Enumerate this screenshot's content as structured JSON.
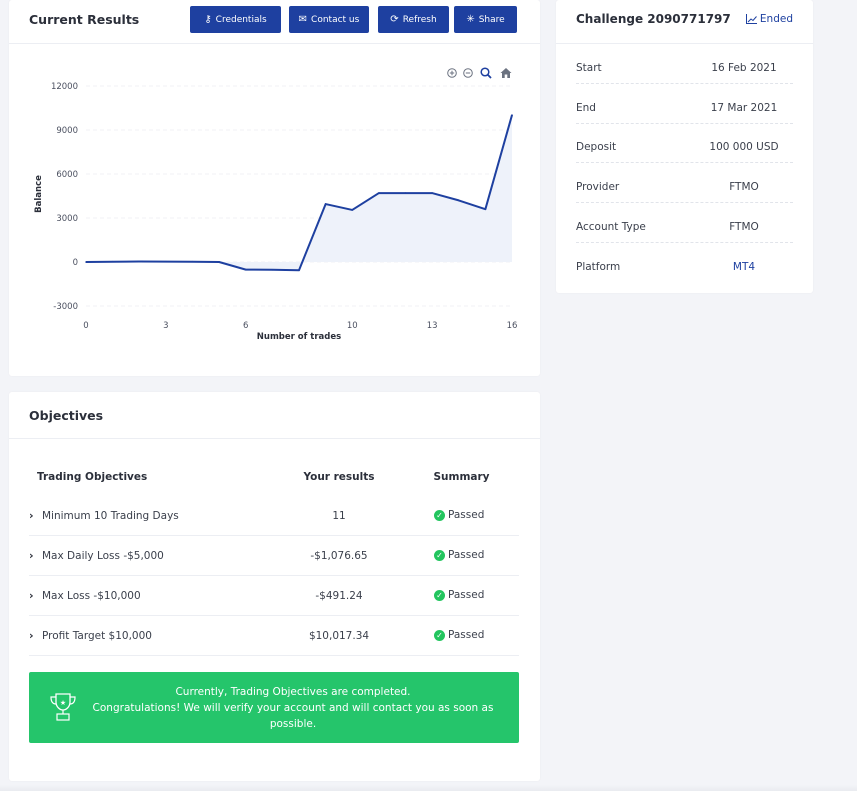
{
  "results": {
    "title": "Current Results",
    "buttons": {
      "credentials": "Credentials",
      "contact": "Contact us",
      "refresh": "Refresh",
      "share": "Share"
    },
    "chart_tools": [
      "zoom-in-icon",
      "zoom-out-icon",
      "zoom-select-icon",
      "home-icon"
    ]
  },
  "chart_data": {
    "type": "area",
    "xlabel": "Number of trades",
    "ylabel": "Balance",
    "xlim": [
      0,
      16
    ],
    "ylim": [
      -3000,
      12000
    ],
    "xticks": [
      0,
      3,
      6,
      10,
      13,
      16
    ],
    "yticks": [
      12000,
      9000,
      6000,
      3000,
      0,
      -3000
    ],
    "x": [
      0,
      1,
      2,
      3,
      4,
      5,
      6,
      7,
      8,
      9,
      10,
      11,
      12,
      13,
      14,
      15,
      16
    ],
    "values": [
      0,
      20,
      30,
      25,
      20,
      0,
      -520,
      -530,
      -560,
      3950,
      3550,
      4700,
      4700,
      4700,
      4200,
      3600,
      10017
    ],
    "line_color": "#1e40a0",
    "fill_color": "#eef2fa",
    "grid": true
  },
  "challenge": {
    "title": "Challenge 2090771797",
    "status": "Ended",
    "rows": [
      {
        "label": "Start",
        "value": "16 Feb 2021"
      },
      {
        "label": "End",
        "value": "17 Mar 2021"
      },
      {
        "label": "Deposit",
        "value": "100 000 USD"
      },
      {
        "label": "Provider",
        "value": "FTMO"
      },
      {
        "label": "Account Type",
        "value": "FTMO"
      },
      {
        "label": "Platform",
        "value": "MT4"
      }
    ]
  },
  "objectives": {
    "title": "Objectives",
    "headers": {
      "objective": "Trading Objectives",
      "results": "Your results",
      "summary": "Summary"
    },
    "rows": [
      {
        "name": "Minimum 10 Trading Days",
        "result": "11",
        "summary": "Passed"
      },
      {
        "name": "Max Daily Loss -$5,000",
        "result": "-$1,076.65",
        "summary": "Passed"
      },
      {
        "name": "Max Loss -$10,000",
        "result": "-$491.24",
        "summary": "Passed"
      },
      {
        "name": "Profit Target $10,000",
        "result": "$10,017.34",
        "summary": "Passed"
      }
    ],
    "banner": {
      "line1": "Currently, Trading Objectives are completed.",
      "line2": "Congratulations! We will verify your account and will contact you as soon as possible."
    }
  }
}
